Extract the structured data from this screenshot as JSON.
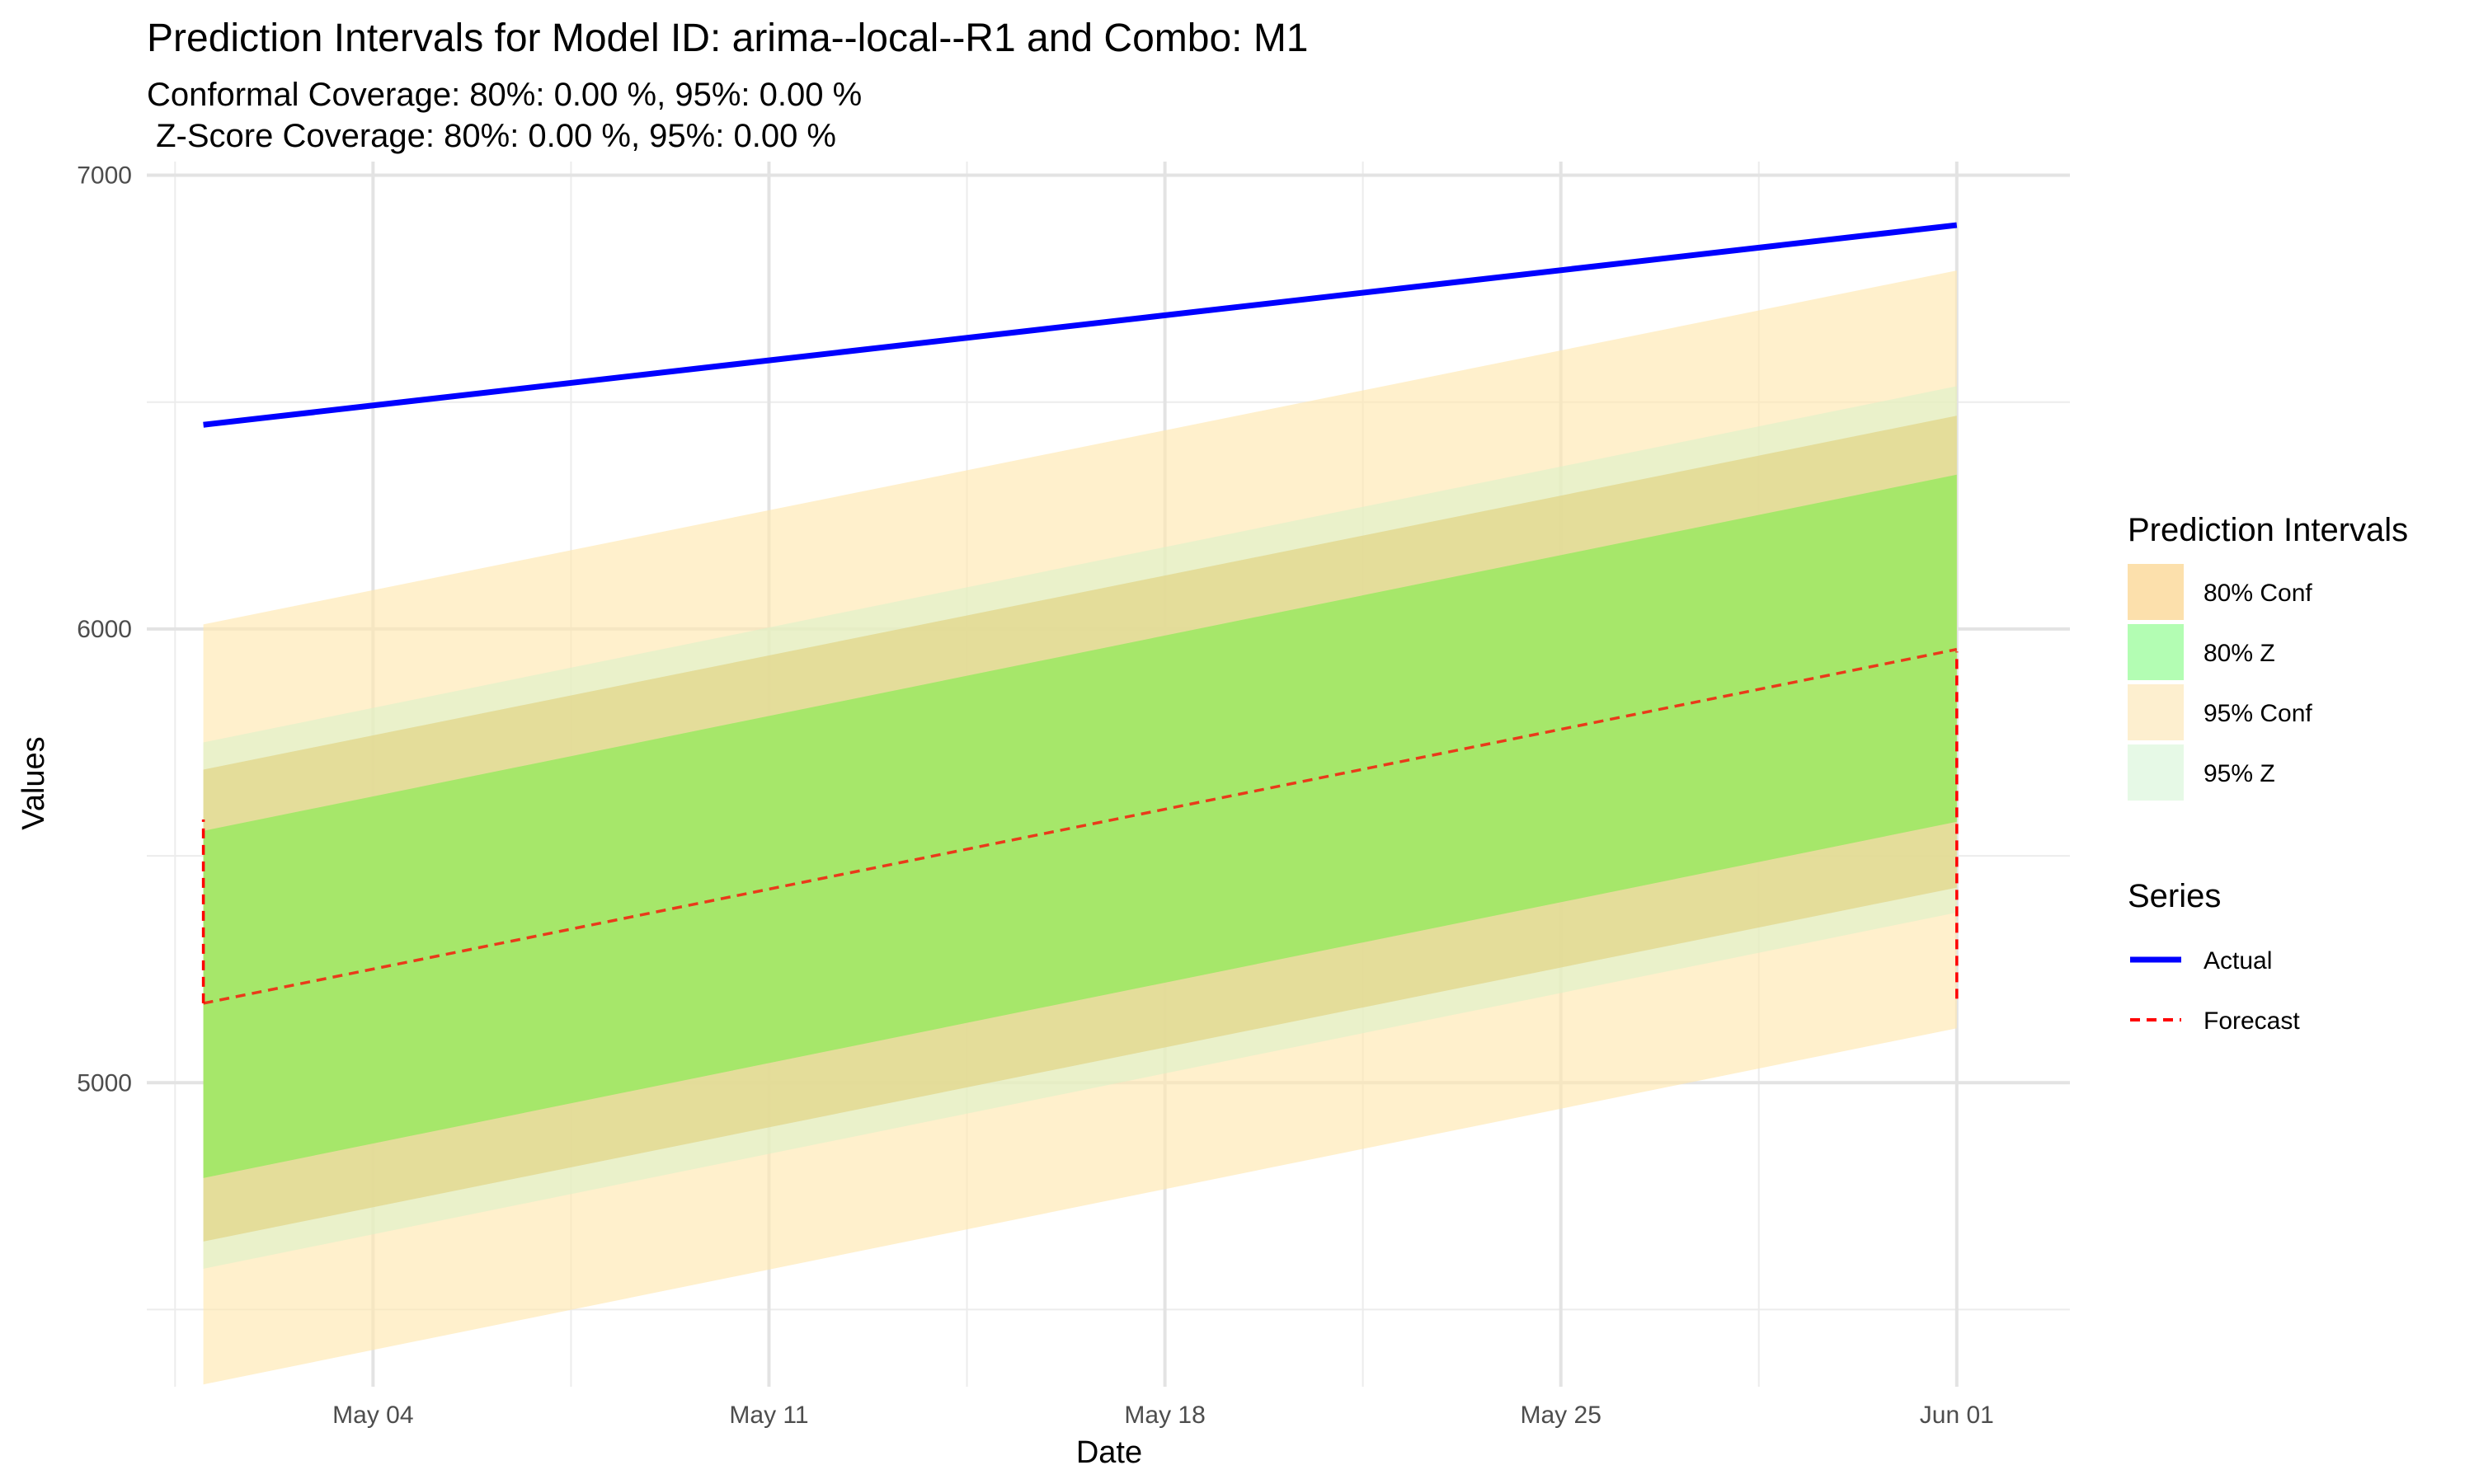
{
  "chart_data": {
    "type": "area",
    "title": "Prediction Intervals for Model ID: arima--local--R1 and Combo: M1",
    "subtitle_lines": [
      "Conformal Coverage: 80%: 0.00 %, 95%: 0.00 %",
      " Z-Score Coverage: 80%: 0.00 %, 95%: 0.00 %"
    ],
    "xlabel": "Date",
    "ylabel": "Values",
    "x_start": "2024-05-01",
    "x_end": "2024-06-01",
    "xlim": [
      "2024-04-30",
      "2024-06-03"
    ],
    "x_ticks": [
      {
        "date": "2024-05-04",
        "label": "May 04"
      },
      {
        "date": "2024-05-11",
        "label": "May 11"
      },
      {
        "date": "2024-05-18",
        "label": "May 18"
      },
      {
        "date": "2024-05-25",
        "label": "May 25"
      },
      {
        "date": "2024-06-01",
        "label": "Jun 01"
      }
    ],
    "ylim": [
      4330,
      7030
    ],
    "y_ticks": [
      5000,
      6000,
      7000
    ],
    "grid": true,
    "bands": [
      {
        "name": "95% Conf",
        "color": "#FFE8B0",
        "opacity": 0.65,
        "lower": [
          4335,
          5120
        ],
        "upper": [
          6010,
          6790
        ]
      },
      {
        "name": "95% Z",
        "color": "#D8F2C8",
        "opacity": 0.55,
        "lower": [
          4590,
          5375
        ],
        "upper": [
          5750,
          6535
        ]
      },
      {
        "name": "80% Conf",
        "color": "#E1D58A",
        "opacity": 0.75,
        "lower": [
          4650,
          5430
        ],
        "upper": [
          5690,
          6470
        ]
      },
      {
        "name": "80% Z",
        "color": "#A6E76A",
        "opacity": 1.0,
        "lower": [
          4790,
          5575
        ],
        "upper": [
          5555,
          6340
        ]
      }
    ],
    "series": [
      {
        "name": "Actual",
        "color": "#0000FF",
        "style": "solid",
        "values": [
          6450,
          6890
        ]
      },
      {
        "name": "Forecast",
        "color": "#FF0000",
        "style": "dashed",
        "values": [
          5175,
          5955
        ]
      }
    ],
    "forecast_edges": [
      {
        "date": "2024-05-01",
        "from": 5175,
        "to": 5580
      },
      {
        "date": "2024-06-01",
        "from": 5185,
        "to": 5950
      }
    ],
    "legend": {
      "position": "right",
      "intervals_title": "Prediction Intervals",
      "intervals": [
        {
          "label": "80% Conf",
          "color": "#FCE0AC"
        },
        {
          "label": "80% Z",
          "color": "#B3FDB3"
        },
        {
          "label": "95% Conf",
          "color": "#FDEFCF"
        },
        {
          "label": "95% Z",
          "color": "#E6F9E6"
        }
      ],
      "series_title": "Series",
      "series": [
        {
          "label": "Actual",
          "color": "#0000FF",
          "style": "solid"
        },
        {
          "label": "Forecast",
          "color": "#FF0000",
          "style": "dashed"
        }
      ]
    }
  }
}
